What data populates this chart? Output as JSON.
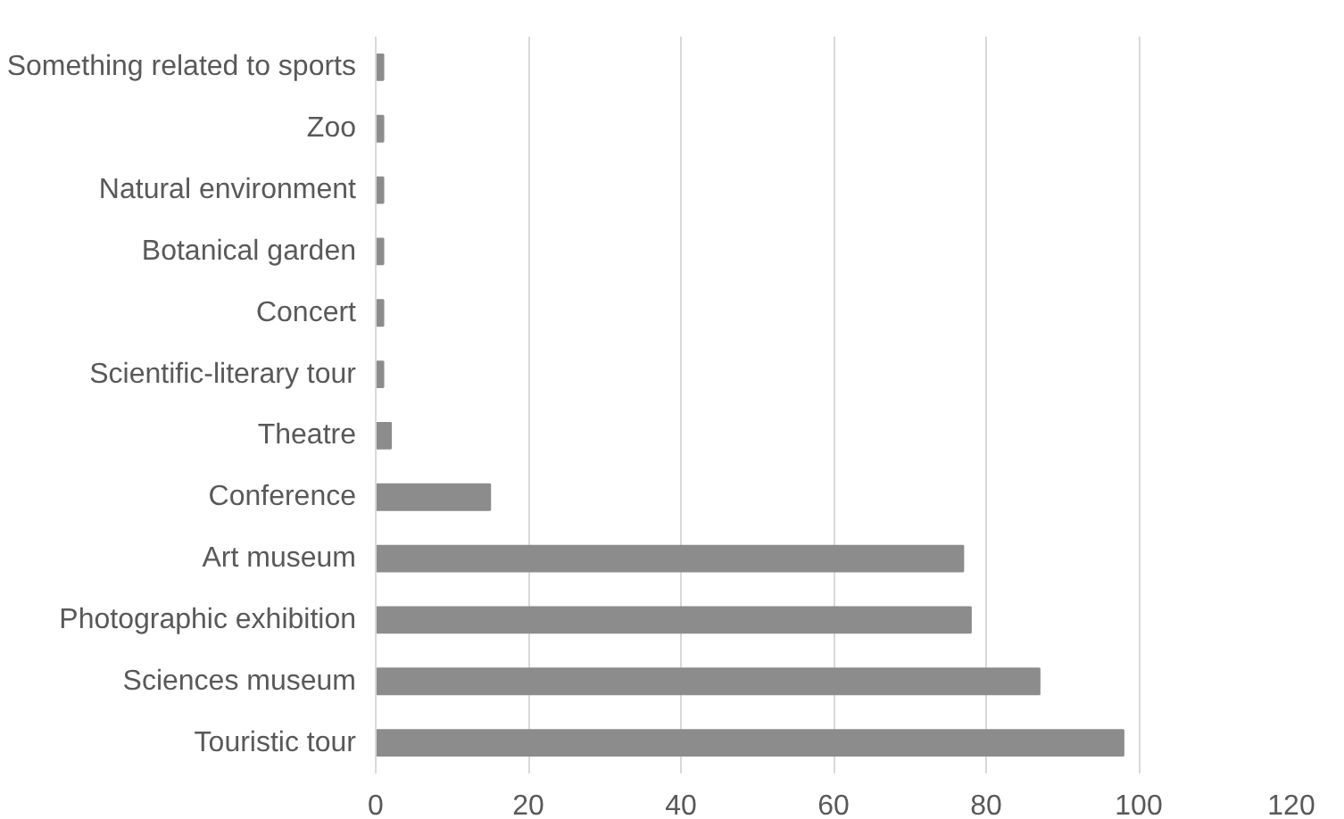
{
  "chart_data": {
    "type": "bar",
    "orientation": "horizontal",
    "categories": [
      "Something related to sports",
      "Zoo",
      "Natural environment",
      "Botanical garden",
      "Concert",
      "Scientific-literary tour",
      "Theatre",
      "Conference",
      "Art museum",
      "Photographic exhibition",
      "Sciences museum",
      "Touristic tour"
    ],
    "values": [
      1,
      1,
      1,
      1,
      1,
      1,
      2,
      15,
      77,
      78,
      87,
      98
    ],
    "color": "#8c8c8c",
    "xlim": [
      0,
      120
    ],
    "xticks": [
      0,
      20,
      40,
      60,
      80,
      100,
      120
    ],
    "grid": "x"
  }
}
